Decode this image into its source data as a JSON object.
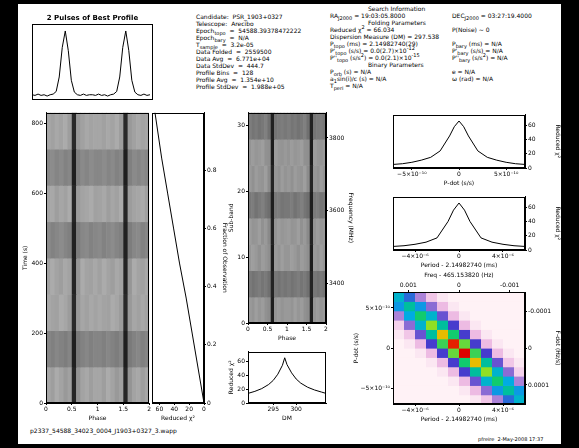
{
  "info": {
    "left": [
      [
        "Candidate:  PSR_1903+0327"
      ],
      [
        "Telescope:  Arecibo"
      ],
      [
        "Epoch",
        {
          "sub": "topo"
        },
        "  =  54588.39378472222"
      ],
      [
        "Epoch",
        {
          "sub": "bary"
        },
        "  =  N/A"
      ],
      [
        "T",
        {
          "sub": "sample"
        },
        "  =  3.2e-05"
      ],
      [
        "Data Folded  =  2559500"
      ],
      [
        "Data Avg  =  6.771e+04"
      ],
      [
        "Data StdDev  =  444.7"
      ],
      [
        "Profile Bins  =  128"
      ],
      [
        "Profile Avg  =  1.354e+10"
      ],
      [
        "Profile StdDev  =  1.988e+05"
      ]
    ],
    "right": [
      {
        "heading": "Search Information"
      },
      {
        "columns": [
          [
            "RA",
            {
              "sub": "J2000"
            },
            " = 19:03:05.8000"
          ],
          [
            "DEC",
            {
              "sub": "J2000"
            },
            " = 03:27:19.4000"
          ]
        ]
      },
      {
        "heading": "Folding Parameters"
      },
      {
        "columns": [
          [
            "Reduced χ",
            {
              "sup": "2"
            },
            " = 66.034"
          ],
          [
            "P(Noise) ~ 0"
          ]
        ]
      },
      {
        "columns": [
          [
            "Dispersion Measure (DM) = 297.538"
          ]
        ]
      },
      {
        "columns": [
          [
            "P",
            {
              "sub": "topo"
            },
            " (ms) = 2.14982740(29)"
          ],
          [
            "P",
            {
              "sub": "bary"
            },
            " (ms) = N/A"
          ]
        ]
      },
      {
        "columns": [
          [
            "P'",
            {
              "sub": "topo"
            },
            " (s/s) = 0.0(2.7)×10",
            {
              "sup": "-12"
            }
          ],
          [
            "P'",
            {
              "sub": "bary"
            },
            " (s/s) = N/A"
          ]
        ]
      },
      {
        "columns": [
          [
            "P''",
            {
              "sub": "topo"
            },
            " (s/s",
            {
              "sup": "2"
            },
            ") = 0.0(2.1)×10",
            {
              "sup": "-15"
            }
          ],
          [
            "P''",
            {
              "sub": "bary"
            },
            " (s/s",
            {
              "sup": "2"
            },
            ") = N/A"
          ]
        ]
      },
      {
        "heading": "Binary Parameters"
      },
      {
        "columns": [
          [
            "P",
            {
              "sub": "orb"
            },
            " (s) = N/A"
          ],
          [
            "e = N/A"
          ]
        ]
      },
      {
        "columns": [
          [
            "a",
            {
              "sub": "1"
            },
            "sin(i)/c (s) = N/A"
          ],
          [
            "ω (rad) = N/A"
          ]
        ]
      },
      {
        "columns": [
          [
            "T",
            {
              "sub": "peri"
            },
            " = N/A"
          ]
        ]
      }
    ]
  },
  "footer": {
    "filename": "p2337_54588_34023_0004_J1903+0327_3.wapp",
    "stamp": "pfreire  2-May-2008 17:37"
  },
  "chart_data": [
    {
      "type": "line",
      "title": "2 Pulses of Best Profile",
      "tick_labels": false,
      "color": "#000000",
      "xlim": [
        0,
        2
      ],
      "ylim": [
        -0.05,
        1.1
      ],
      "x": [
        0,
        0.05,
        0.1,
        0.15,
        0.2,
        0.25,
        0.3,
        0.35,
        0.4,
        0.45,
        0.5,
        0.55,
        0.6,
        0.65,
        0.7,
        0.75,
        0.8,
        0.85,
        0.9,
        0.95,
        1,
        1.05,
        1.1,
        1.15,
        1.2,
        1.25,
        1.3,
        1.35,
        1.4,
        1.45,
        1.5,
        1.55,
        1.6,
        1.65,
        1.7,
        1.75,
        1.8,
        1.85,
        1.9,
        1.95
      ],
      "values": [
        0.03,
        0.02,
        0.04,
        0.02,
        0.03,
        0.01,
        0.03,
        0.04,
        0.08,
        0.3,
        0.75,
        1.0,
        0.7,
        0.25,
        0.07,
        0.03,
        0.02,
        0.04,
        0.02,
        0.03,
        0.03,
        0.02,
        0.04,
        0.02,
        0.03,
        0.01,
        0.03,
        0.04,
        0.08,
        0.3,
        0.75,
        1.0,
        0.7,
        0.25,
        0.07,
        0.03,
        0.02,
        0.04,
        0.02,
        0.03
      ]
    },
    {
      "type": "heatmap",
      "color": "gray",
      "x_label": "Phase",
      "y_label": "Time (s)",
      "xlim": [
        0,
        2
      ],
      "xticks": [
        0,
        0.5,
        1,
        1.5,
        2
      ],
      "ylim": [
        0,
        830
      ],
      "yticks": [
        0,
        200,
        400,
        600,
        800
      ],
      "cells": [
        [
          0.35,
          0.38,
          0.33,
          0.36,
          0.4,
          0.37,
          0.85,
          0.42,
          0.36,
          0.34,
          0.38,
          0.35,
          0.35,
          0.38,
          0.33,
          0.36,
          0.4,
          0.37,
          0.85,
          0.42,
          0.36,
          0.34,
          0.38,
          0.35
        ],
        [
          0.48,
          0.5,
          0.47,
          0.49,
          0.51,
          0.48,
          0.88,
          0.52,
          0.49,
          0.47,
          0.5,
          0.48,
          0.48,
          0.5,
          0.47,
          0.49,
          0.51,
          0.48,
          0.88,
          0.52,
          0.49,
          0.47,
          0.5,
          0.48
        ],
        [
          0.34,
          0.36,
          0.37,
          0.33,
          0.35,
          0.39,
          0.84,
          0.4,
          0.35,
          0.37,
          0.34,
          0.36,
          0.34,
          0.36,
          0.37,
          0.33,
          0.35,
          0.39,
          0.84,
          0.4,
          0.35,
          0.37,
          0.34,
          0.36
        ],
        [
          0.37,
          0.33,
          0.36,
          0.38,
          0.34,
          0.36,
          0.86,
          0.41,
          0.33,
          0.36,
          0.37,
          0.34,
          0.37,
          0.33,
          0.36,
          0.38,
          0.34,
          0.36,
          0.86,
          0.41,
          0.33,
          0.36,
          0.37,
          0.34
        ],
        [
          0.46,
          0.49,
          0.47,
          0.45,
          0.48,
          0.5,
          0.87,
          0.51,
          0.47,
          0.46,
          0.49,
          0.47,
          0.46,
          0.49,
          0.47,
          0.45,
          0.48,
          0.5,
          0.87,
          0.51,
          0.47,
          0.46,
          0.49,
          0.47
        ],
        [
          0.36,
          0.34,
          0.38,
          0.35,
          0.37,
          0.33,
          0.85,
          0.39,
          0.36,
          0.35,
          0.33,
          0.37,
          0.36,
          0.34,
          0.38,
          0.35,
          0.37,
          0.33,
          0.85,
          0.39,
          0.36,
          0.35,
          0.33,
          0.37
        ],
        [
          0.47,
          0.45,
          0.48,
          0.46,
          0.49,
          0.47,
          0.88,
          0.5,
          0.46,
          0.48,
          0.45,
          0.47,
          0.47,
          0.45,
          0.48,
          0.46,
          0.49,
          0.47,
          0.88,
          0.5,
          0.46,
          0.48,
          0.45,
          0.47
        ],
        [
          0.35,
          0.37,
          0.34,
          0.36,
          0.33,
          0.38,
          0.84,
          0.4,
          0.37,
          0.34,
          0.36,
          0.35,
          0.35,
          0.37,
          0.34,
          0.36,
          0.33,
          0.38,
          0.84,
          0.4,
          0.37,
          0.34,
          0.36,
          0.35
        ]
      ]
    },
    {
      "type": "line",
      "color": "#000000",
      "x_label": "Reduced χ²",
      "y2_label": "Fraction of Observation",
      "xlim": [
        70,
        0
      ],
      "xticks": [
        60,
        40,
        20,
        0
      ],
      "ylim": [
        0,
        830
      ],
      "y2lim": [
        0,
        1
      ],
      "y2ticks": [
        0,
        0.2,
        0.4,
        0.6,
        0.8
      ],
      "x": [
        0,
        8,
        16,
        24,
        33,
        41,
        49,
        57,
        66
      ],
      "values": [
        0,
        100,
        200,
        300,
        400,
        500,
        600,
        700,
        830
      ]
    },
    {
      "type": "heatmap",
      "color": "gray",
      "x_label": "Phase",
      "y_label": "Sub-band",
      "y2_label": "Frequency (MHz)",
      "xlim": [
        0,
        2
      ],
      "xticks": [
        0,
        0.5,
        1,
        1.5,
        2
      ],
      "ylim": [
        0,
        32
      ],
      "yticks": [
        0,
        10,
        20,
        30
      ],
      "y2lim": [
        3290,
        3870
      ],
      "y2ticks": [
        3400,
        3600,
        3800
      ],
      "cells": [
        [
          0.4,
          0.42,
          0.38,
          0.41,
          0.39,
          0.43,
          0.45,
          0.88,
          0.41,
          0.39,
          0.42,
          0.4,
          0.4,
          0.42,
          0.38,
          0.41,
          0.39,
          0.43,
          0.45,
          0.88,
          0.41,
          0.39,
          0.42,
          0.4
        ],
        [
          0.52,
          0.55,
          0.53,
          0.51,
          0.54,
          0.52,
          0.56,
          0.86,
          0.53,
          0.55,
          0.52,
          0.54,
          0.52,
          0.55,
          0.53,
          0.51,
          0.54,
          0.52,
          0.56,
          0.86,
          0.53,
          0.55,
          0.52,
          0.54
        ],
        [
          0.41,
          0.38,
          0.4,
          0.43,
          0.39,
          0.41,
          0.44,
          0.89,
          0.4,
          0.42,
          0.38,
          0.41,
          0.41,
          0.38,
          0.4,
          0.43,
          0.39,
          0.41,
          0.44,
          0.89,
          0.4,
          0.42,
          0.38,
          0.41
        ],
        [
          0.39,
          0.42,
          0.41,
          0.38,
          0.43,
          0.4,
          0.46,
          0.87,
          0.42,
          0.39,
          0.41,
          0.4,
          0.39,
          0.42,
          0.41,
          0.38,
          0.43,
          0.4,
          0.46,
          0.87,
          0.42,
          0.39,
          0.41,
          0.4
        ],
        [
          0.53,
          0.51,
          0.55,
          0.52,
          0.5,
          0.54,
          0.57,
          0.88,
          0.52,
          0.51,
          0.54,
          0.53,
          0.53,
          0.51,
          0.55,
          0.52,
          0.5,
          0.54,
          0.57,
          0.88,
          0.52,
          0.51,
          0.54,
          0.53
        ],
        [
          0.4,
          0.43,
          0.39,
          0.41,
          0.42,
          0.38,
          0.45,
          0.86,
          0.41,
          0.43,
          0.39,
          0.42,
          0.4,
          0.43,
          0.39,
          0.41,
          0.42,
          0.38,
          0.45,
          0.86,
          0.41,
          0.43,
          0.39,
          0.42
        ],
        [
          0.42,
          0.39,
          0.41,
          0.4,
          0.38,
          0.43,
          0.44,
          0.89,
          0.39,
          0.41,
          0.42,
          0.4,
          0.42,
          0.39,
          0.41,
          0.4,
          0.38,
          0.43,
          0.44,
          0.89,
          0.39,
          0.41,
          0.42,
          0.4
        ],
        [
          0.51,
          0.54,
          0.52,
          0.55,
          0.53,
          0.5,
          0.56,
          0.87,
          0.54,
          0.52,
          0.51,
          0.53,
          0.51,
          0.54,
          0.52,
          0.55,
          0.53,
          0.5,
          0.56,
          0.87,
          0.54,
          0.52,
          0.51,
          0.53
        ]
      ]
    },
    {
      "type": "line",
      "color": "#000000",
      "x_label": "DM",
      "y_label": "Reduced χ²",
      "xlim": [
        289.5,
        306.5
      ],
      "xticks": [
        295,
        300
      ],
      "ylim": [
        0,
        75
      ],
      "yticks": [
        0,
        20,
        40,
        60
      ],
      "x": [
        289.5,
        291,
        292.5,
        294,
        295,
        296,
        297,
        297.5,
        298,
        299,
        300,
        301,
        302.5,
        304,
        305.5,
        306.5
      ],
      "values": [
        14,
        17,
        21,
        27,
        33,
        42,
        55,
        66,
        56,
        44,
        35,
        29,
        23,
        19,
        16,
        14
      ]
    },
    {
      "type": "line",
      "color": "#000000",
      "x_label": "P-dot (s/s)",
      "y_label": "Reduced χ²",
      "xlim": [
        -7e-10,
        7e-10
      ],
      "xticks": [
        {
          "value": -5e-10,
          "label": "−5×10⁻¹⁰"
        },
        0,
        {
          "value": 5e-10,
          "label": "5×10⁻¹⁰"
        }
      ],
      "ylim": [
        0,
        75
      ],
      "yticks": [
        0,
        20,
        40,
        60
      ],
      "x": [
        -7e-10,
        -6e-10,
        -5e-10,
        -4e-10,
        -3e-10,
        -2e-10,
        -1e-10,
        -5e-11,
        0,
        5e-11,
        1e-10,
        2e-10,
        3e-10,
        4e-10,
        5e-10,
        6e-10,
        7e-10
      ],
      "values": [
        5,
        6,
        8,
        11,
        15,
        24,
        45,
        58,
        66,
        58,
        45,
        24,
        15,
        11,
        8,
        6,
        5
      ]
    },
    {
      "type": "line",
      "color": "#000000",
      "x_label": "Period - 2.14982740 (ms)",
      "y_label": "Reduced χ²",
      "xlim": [
        -6e-06,
        6e-06
      ],
      "xticks": [
        {
          "value": -4e-06,
          "label": "−4×10⁻⁶"
        },
        0,
        {
          "value": 4e-06,
          "label": "4×10⁻⁶"
        }
      ],
      "ylim": [
        0,
        75
      ],
      "yticks": [
        0,
        20,
        40,
        60
      ],
      "x": [
        -6e-06,
        -5e-06,
        -4e-06,
        -3e-06,
        -2e-06,
        -1e-06,
        -5e-07,
        0,
        5e-07,
        1e-06,
        2e-06,
        3e-06,
        4e-06,
        5e-06,
        6e-06
      ],
      "values": [
        5,
        6,
        8,
        11,
        17,
        40,
        56,
        66,
        56,
        40,
        17,
        11,
        8,
        6,
        5
      ]
    },
    {
      "type": "heatmap",
      "color": "rainbow",
      "x_label": "Period - 2.14982740 (ms)",
      "y_label": "P-dot (s/s)",
      "x2_label": "Freq - 465.153820 (Hz)",
      "y2_label": "F-dot (Hz/s)",
      "xlim": [
        -6e-06,
        6e-06
      ],
      "xticks": [
        {
          "value": -4e-06,
          "label": "−4×10⁻⁶"
        },
        0,
        {
          "value": 4e-06,
          "label": "4×10⁻⁶"
        }
      ],
      "ylim": [
        -7e-10,
        7e-10
      ],
      "yticks": [
        {
          "value": -5e-10,
          "label": "−5×10⁻¹⁰"
        },
        0,
        {
          "value": 5e-10,
          "label": "5×10⁻¹⁰"
        }
      ],
      "x2lim": [
        0.0013,
        -0.0013
      ],
      "x2ticks": [
        -0.001,
        0,
        0.001
      ],
      "y2lim": [
        0.0001515,
        -0.0001515
      ],
      "y2ticks": [
        -0.0001,
        0,
        0.0001
      ],
      "cells": [
        [
          2,
          2,
          2,
          2,
          2,
          2,
          2,
          3,
          6,
          12,
          22,
          30
        ],
        [
          2,
          2,
          2,
          2,
          2,
          2,
          3,
          7,
          14,
          26,
          34,
          26
        ],
        [
          2,
          2,
          2,
          2,
          2,
          3,
          7,
          16,
          30,
          38,
          28,
          12
        ],
        [
          2,
          2,
          2,
          2,
          3,
          7,
          18,
          34,
          44,
          30,
          14,
          5
        ],
        [
          2,
          2,
          2,
          3,
          7,
          18,
          38,
          52,
          34,
          16,
          6,
          3
        ],
        [
          2,
          2,
          3,
          7,
          18,
          42,
          66,
          40,
          18,
          7,
          3,
          2
        ],
        [
          2,
          3,
          7,
          18,
          40,
          64,
          42,
          18,
          7,
          3,
          2,
          2
        ],
        [
          3,
          6,
          16,
          34,
          52,
          38,
          18,
          7,
          3,
          2,
          2,
          2
        ],
        [
          5,
          14,
          30,
          44,
          34,
          18,
          7,
          3,
          2,
          2,
          2,
          2
        ],
        [
          12,
          28,
          38,
          30,
          16,
          7,
          3,
          2,
          2,
          2,
          2,
          2
        ],
        [
          26,
          34,
          26,
          14,
          7,
          3,
          2,
          2,
          2,
          2,
          2,
          2
        ],
        [
          30,
          22,
          12,
          6,
          3,
          2,
          2,
          2,
          2,
          2,
          2,
          2
        ]
      ]
    }
  ]
}
